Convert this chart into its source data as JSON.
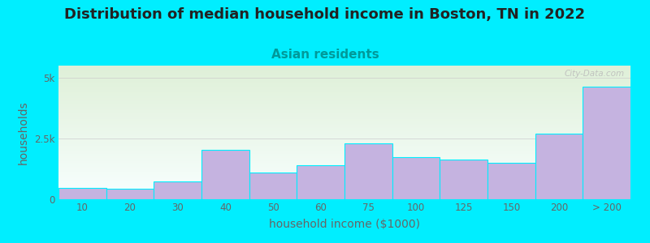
{
  "title": "Distribution of median household income in Boston, TN in 2022",
  "subtitle": "Asian residents",
  "xlabel": "household income ($1000)",
  "ylabel": "households",
  "categories": [
    "10",
    "20",
    "30",
    "40",
    "50",
    "60",
    "75",
    "100",
    "125",
    "150",
    "200",
    "> 200"
  ],
  "values": [
    480,
    430,
    750,
    2050,
    1100,
    1400,
    2300,
    1750,
    1650,
    1500,
    2700,
    4650
  ],
  "bar_color": "#c5b3e0",
  "background_outer": "#00eeff",
  "background_inner_bottom": "#dff0d8",
  "background_inner_top": "#f8ffff",
  "ylim": [
    0,
    5500
  ],
  "yticks": [
    0,
    2500,
    5000
  ],
  "ytick_labels": [
    "0",
    "2.5k",
    "5k"
  ],
  "title_fontsize": 13,
  "subtitle_fontsize": 11,
  "axis_label_fontsize": 10,
  "tick_fontsize": 8.5,
  "watermark": "City-Data.com",
  "title_color": "#222222",
  "subtitle_color": "#009999",
  "label_color": "#666666",
  "tick_color": "#666666",
  "watermark_color": "#bbbbbb",
  "grid_color": "#cccccc"
}
